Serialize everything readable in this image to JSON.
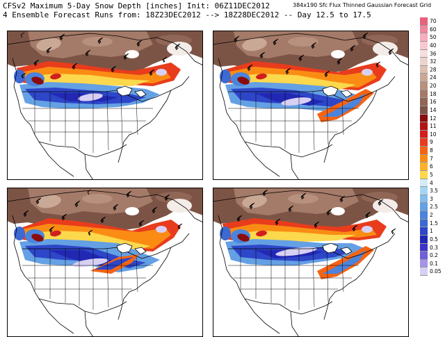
{
  "header": {
    "title": "CFSv2 Maximum 5-Day Snow Depth [inches] Init: 06Z11DEC2012",
    "subtitle": "4 Ensemble Forecast Runs from: 18Z23DEC2012 --> 18Z28DEC2012 -- Day 12.5 to 17.5",
    "grid_note": "384x190 Sfc Flux Thinned Gaussian Forecast Grid"
  },
  "legend": [
    {
      "label": "70",
      "color": "#e8607a"
    },
    {
      "label": "60",
      "color": "#ee889c"
    },
    {
      "label": "50",
      "color": "#f5aebc"
    },
    {
      "label": "40",
      "color": "#f8c8d0"
    },
    {
      "label": "36",
      "color": "#f6dede"
    },
    {
      "label": "32",
      "color": "#ecd4cc"
    },
    {
      "label": "28",
      "color": "#dcc0b2"
    },
    {
      "label": "24",
      "color": "#caa896"
    },
    {
      "label": "20",
      "color": "#b8907e"
    },
    {
      "label": "18",
      "color": "#a47a68"
    },
    {
      "label": "16",
      "color": "#906656"
    },
    {
      "label": "14",
      "color": "#7c5446"
    },
    {
      "label": "12",
      "color": "#8a0c0c"
    },
    {
      "label": "11",
      "color": "#b01414"
    },
    {
      "label": "10",
      "color": "#d21e1e"
    },
    {
      "label": "9",
      "color": "#e83c1c"
    },
    {
      "label": "8",
      "color": "#f46414"
    },
    {
      "label": "7",
      "color": "#fa8c14"
    },
    {
      "label": "6",
      "color": "#fcb02c"
    },
    {
      "label": "5",
      "color": "#fcd84c"
    },
    {
      "label": "4",
      "color": "#d4ecfa"
    },
    {
      "label": "3.5",
      "color": "#a6d4f4"
    },
    {
      "label": "3",
      "color": "#84bcec"
    },
    {
      "label": "2.5",
      "color": "#64a0e4"
    },
    {
      "label": "2",
      "color": "#4c84dc"
    },
    {
      "label": "1.5",
      "color": "#3c6ad2"
    },
    {
      "label": "1",
      "color": "#2e46c8"
    },
    {
      "label": "0.5",
      "color": "#2228b4"
    },
    {
      "label": "0.3",
      "color": "#3c34c8"
    },
    {
      "label": "0.2",
      "color": "#6e60d8"
    },
    {
      "label": "0.1",
      "color": "#a494e6"
    },
    {
      "label": "0.05",
      "color": "#d8d0f4"
    }
  ],
  "panels": [
    {
      "name": "ensemble-member-1",
      "variant": 0
    },
    {
      "name": "ensemble-member-2",
      "variant": 1
    },
    {
      "name": "ensemble-member-3",
      "variant": 2
    },
    {
      "name": "ensemble-member-4",
      "variant": 3
    }
  ]
}
